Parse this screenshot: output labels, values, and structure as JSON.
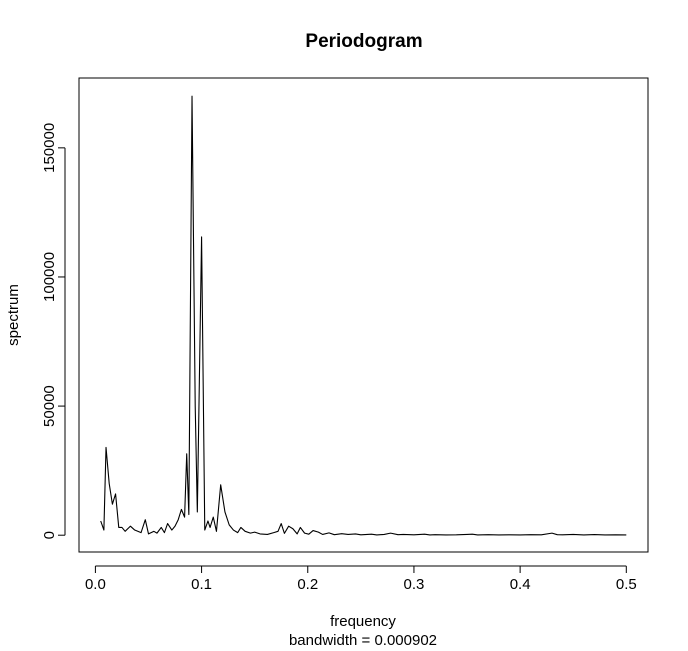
{
  "chart_data": {
    "type": "line",
    "title": "Periodogram",
    "xlabel": "frequency",
    "sublabel": "bandwidth = 0.000902",
    "ylabel": "spectrum",
    "xlim": [
      0,
      0.5
    ],
    "ylim": [
      0,
      170000
    ],
    "x_ticks": [
      {
        "value": 0.0,
        "label": "0.0"
      },
      {
        "value": 0.1,
        "label": "0.1"
      },
      {
        "value": 0.2,
        "label": "0.2"
      },
      {
        "value": 0.3,
        "label": "0.3"
      },
      {
        "value": 0.4,
        "label": "0.4"
      },
      {
        "value": 0.5,
        "label": "0.5"
      }
    ],
    "y_ticks": [
      {
        "value": 0,
        "label": "0"
      },
      {
        "value": 50000,
        "label": "50000"
      },
      {
        "value": 100000,
        "label": "100000"
      },
      {
        "value": 150000,
        "label": "150000"
      }
    ],
    "grid": false,
    "series": [
      {
        "color": "#000000",
        "points": [
          [
            0.005,
            5500
          ],
          [
            0.008,
            2000
          ],
          [
            0.01,
            34000
          ],
          [
            0.013,
            20000
          ],
          [
            0.016,
            12000
          ],
          [
            0.019,
            16000
          ],
          [
            0.022,
            3000
          ],
          [
            0.025,
            3000
          ],
          [
            0.028,
            1500
          ],
          [
            0.033,
            3500
          ],
          [
            0.037,
            2000
          ],
          [
            0.043,
            1000
          ],
          [
            0.047,
            6000
          ],
          [
            0.05,
            500
          ],
          [
            0.055,
            1500
          ],
          [
            0.058,
            800
          ],
          [
            0.062,
            3000
          ],
          [
            0.065,
            1000
          ],
          [
            0.068,
            4500
          ],
          [
            0.072,
            2000
          ],
          [
            0.075,
            3500
          ],
          [
            0.078,
            6000
          ],
          [
            0.081,
            10000
          ],
          [
            0.084,
            7000
          ],
          [
            0.086,
            31500
          ],
          [
            0.088,
            8000
          ],
          [
            0.091,
            170000
          ],
          [
            0.094,
            50000
          ],
          [
            0.096,
            9000
          ],
          [
            0.1,
            115500
          ],
          [
            0.103,
            2000
          ],
          [
            0.106,
            5500
          ],
          [
            0.108,
            3000
          ],
          [
            0.111,
            7000
          ],
          [
            0.114,
            1500
          ],
          [
            0.118,
            19500
          ],
          [
            0.122,
            9000
          ],
          [
            0.126,
            4000
          ],
          [
            0.13,
            2000
          ],
          [
            0.134,
            1000
          ],
          [
            0.137,
            3000
          ],
          [
            0.141,
            1500
          ],
          [
            0.146,
            800
          ],
          [
            0.15,
            1200
          ],
          [
            0.155,
            500
          ],
          [
            0.162,
            300
          ],
          [
            0.168,
            1000
          ],
          [
            0.172,
            1500
          ],
          [
            0.175,
            4500
          ],
          [
            0.178,
            700
          ],
          [
            0.182,
            3500
          ],
          [
            0.186,
            2500
          ],
          [
            0.19,
            500
          ],
          [
            0.193,
            3000
          ],
          [
            0.197,
            800
          ],
          [
            0.201,
            400
          ],
          [
            0.205,
            1800
          ],
          [
            0.21,
            1200
          ],
          [
            0.214,
            300
          ],
          [
            0.22,
            900
          ],
          [
            0.225,
            200
          ],
          [
            0.232,
            600
          ],
          [
            0.238,
            300
          ],
          [
            0.245,
            500
          ],
          [
            0.25,
            150
          ],
          [
            0.26,
            400
          ],
          [
            0.265,
            100
          ],
          [
            0.272,
            300
          ],
          [
            0.278,
            800
          ],
          [
            0.285,
            200
          ],
          [
            0.29,
            300
          ],
          [
            0.3,
            150
          ],
          [
            0.31,
            400
          ],
          [
            0.315,
            100
          ],
          [
            0.32,
            200
          ],
          [
            0.33,
            100
          ],
          [
            0.34,
            150
          ],
          [
            0.35,
            300
          ],
          [
            0.355,
            400
          ],
          [
            0.36,
            100
          ],
          [
            0.37,
            200
          ],
          [
            0.38,
            100
          ],
          [
            0.39,
            150
          ],
          [
            0.4,
            100
          ],
          [
            0.41,
            200
          ],
          [
            0.42,
            150
          ],
          [
            0.43,
            800
          ],
          [
            0.435,
            200
          ],
          [
            0.44,
            150
          ],
          [
            0.45,
            300
          ],
          [
            0.46,
            100
          ],
          [
            0.47,
            250
          ],
          [
            0.48,
            100
          ],
          [
            0.49,
            150
          ],
          [
            0.5,
            100
          ]
        ]
      }
    ]
  }
}
